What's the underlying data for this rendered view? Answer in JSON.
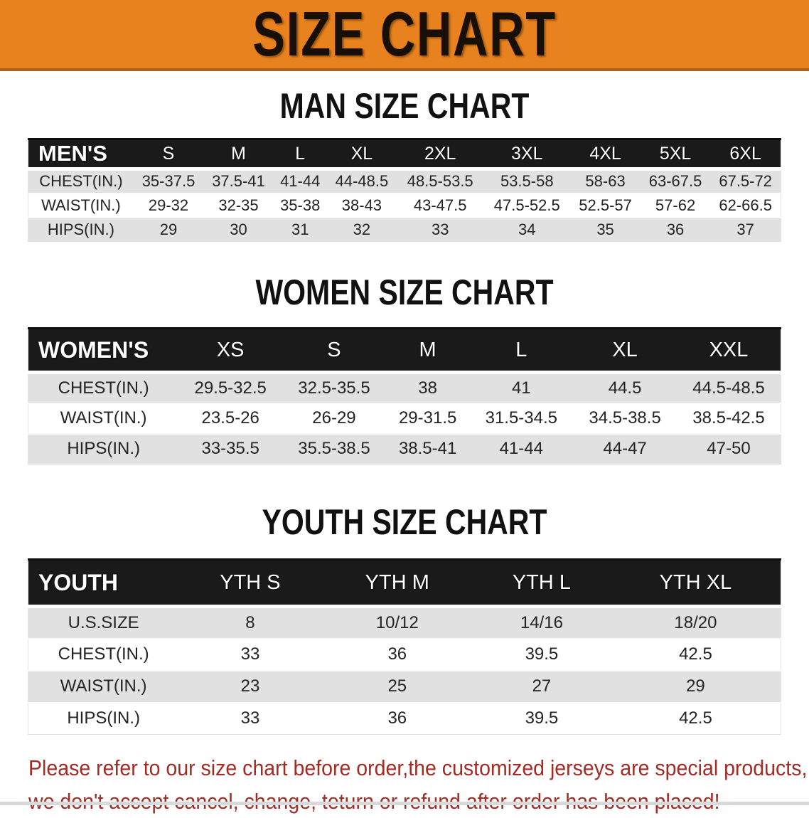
{
  "banner": {
    "title": "SIZE CHART"
  },
  "colors": {
    "banner_bg": "#E8821E",
    "header_bar_bg": "#1A1A1A",
    "row_stripe": "#E1E1E1",
    "warning_text": "#A32B24"
  },
  "sections": [
    {
      "heading": "MAN SIZE CHART",
      "corner_label": "MEN'S",
      "columns": [
        "S",
        "M",
        "L",
        "XL",
        "2XL",
        "3XL",
        "4XL",
        "5XL",
        "6XL"
      ],
      "rows": [
        {
          "label": "CHEST(IN.)",
          "values": [
            "35-37.5",
            "37.5-41",
            "41-44",
            "44-48.5",
            "48.5-53.5",
            "53.5-58",
            "58-63",
            "63-67.5",
            "67.5-72"
          ]
        },
        {
          "label": "WAIST(IN.)",
          "values": [
            "29-32",
            "32-35",
            "35-38",
            "38-43",
            "43-47.5",
            "47.5-52.5",
            "52.5-57",
            "57-62",
            "62-66.5"
          ]
        },
        {
          "label": "HIPS(IN.)",
          "values": [
            "29",
            "30",
            "31",
            "32",
            "33",
            "34",
            "35",
            "36",
            "37"
          ]
        }
      ]
    },
    {
      "heading": "WOMEN SIZE CHART",
      "corner_label": "WOMEN'S",
      "columns": [
        "XS",
        "S",
        "M",
        "L",
        "XL",
        "XXL"
      ],
      "rows": [
        {
          "label": "CHEST(IN.)",
          "values": [
            "29.5-32.5",
            "32.5-35.5",
            "38",
            "41",
            "44.5",
            "44.5-48.5"
          ]
        },
        {
          "label": "WAIST(IN.)",
          "values": [
            "23.5-26",
            "26-29",
            "29-31.5",
            "31.5-34.5",
            "34.5-38.5",
            "38.5-42.5"
          ]
        },
        {
          "label": "HIPS(IN.)",
          "values": [
            "33-35.5",
            "35.5-38.5",
            "38.5-41",
            "41-44",
            "44-47",
            "47-50"
          ]
        }
      ]
    },
    {
      "heading": "YOUTH SIZE CHART",
      "corner_label": "YOUTH",
      "columns": [
        "YTH S",
        "YTH M",
        "YTH L",
        "YTH XL"
      ],
      "rows": [
        {
          "label": "U.S.SIZE",
          "values": [
            "8",
            "10/12",
            "14/16",
            "18/20"
          ]
        },
        {
          "label": "CHEST(IN.)",
          "values": [
            "33",
            "36",
            "39.5",
            "42.5"
          ]
        },
        {
          "label": "WAIST(IN.)",
          "values": [
            "23",
            "25",
            "27",
            "29"
          ]
        },
        {
          "label": "HIPS(IN.)",
          "values": [
            "33",
            "36",
            "39.5",
            "42.5"
          ]
        }
      ]
    }
  ],
  "footer": {
    "line1": "Please refer to our size chart before order,the customized jerseys are special products,",
    "line2": "we don't accept cancel, change, teturn or refund after order has been placed!"
  }
}
